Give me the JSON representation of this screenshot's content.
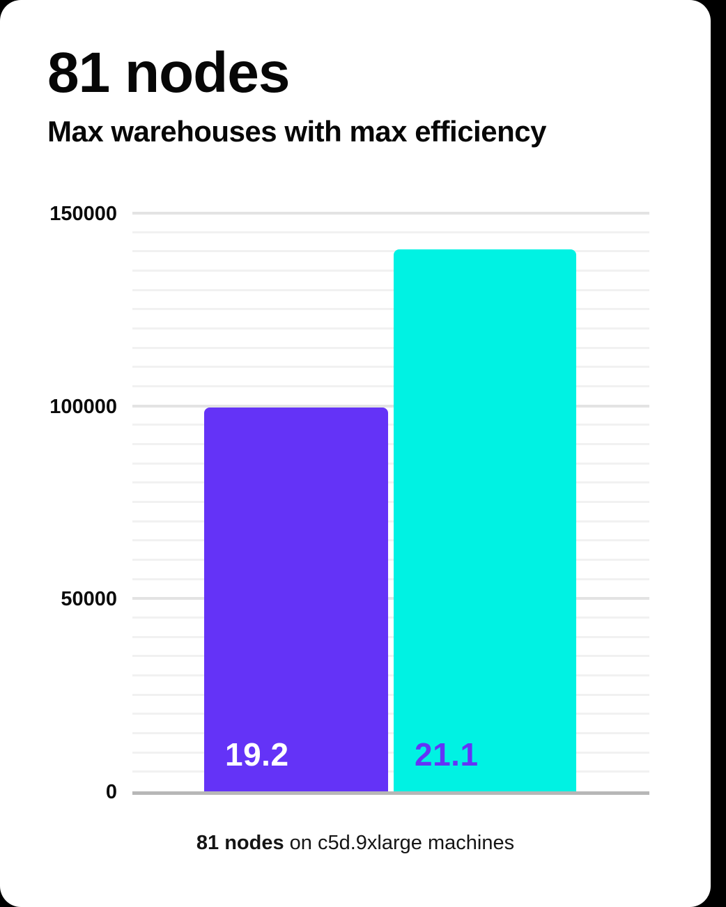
{
  "header": {
    "title": "81 nodes",
    "subtitle": "Max warehouses with max efficiency"
  },
  "caption": {
    "bold": "81 nodes",
    "rest": " on c5d.9xlarge machines"
  },
  "colors": {
    "page_background": "#000000",
    "card_background": "#ffffff",
    "purple": "#6433F7",
    "cyan": "#00F2E3",
    "grid_minor": "#f1f1f1",
    "grid_major": "#e3e3e3",
    "axis_line": "#b7b7b7",
    "text": "#070707"
  },
  "chart_data": {
    "type": "bar",
    "title": "81 nodes",
    "subtitle": "Max warehouses with max efficiency",
    "caption": "81 nodes on c5d.9xlarge machines",
    "xlabel": "",
    "ylabel": "",
    "ylim": [
      0,
      150000
    ],
    "yticks": [
      0,
      50000,
      100000,
      150000
    ],
    "minor_gridline_step": 5000,
    "grid": true,
    "legend": false,
    "bars": [
      {
        "name": "bar-purple",
        "label": "19.2",
        "value": 99600,
        "color": "#6433F7",
        "label_color": "#ffffff"
      },
      {
        "name": "bar-cyan",
        "label": "21.1",
        "value": 140600,
        "color": "#00F2E3",
        "label_color": "#6433F7"
      }
    ]
  }
}
